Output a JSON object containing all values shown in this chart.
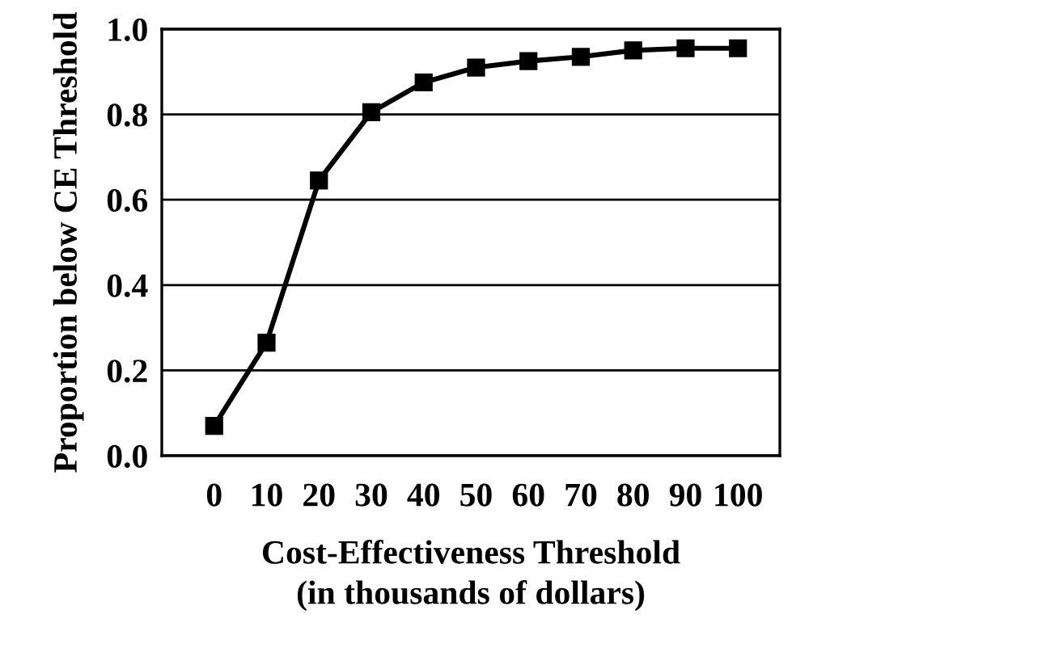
{
  "chart_data": {
    "type": "line",
    "xlabel": "Cost-Effectiveness Threshold\n(in thousands of dollars)",
    "ylabel": "Proportion below CE Threshold",
    "categories": [
      "0",
      "10",
      "20",
      "30",
      "40",
      "50",
      "60",
      "70",
      "80",
      "90",
      "100"
    ],
    "series": [
      {
        "color": "#000000",
        "values": [
          0.07,
          0.265,
          0.645,
          0.805,
          0.875,
          0.91,
          0.925,
          0.935,
          0.95,
          0.955,
          0.955
        ]
      }
    ],
    "ylim": [
      0,
      1
    ],
    "yticks": [
      {
        "value": 0,
        "label": "0.0"
      },
      {
        "value": 0.2,
        "label": "0.2"
      },
      {
        "value": 0.4,
        "label": "0.4"
      },
      {
        "value": 0.6,
        "label": "0.6"
      },
      {
        "value": 0.8,
        "label": "0.8"
      },
      {
        "value": 1,
        "label": "1.0"
      }
    ],
    "grid": "y",
    "marker": "square",
    "line_style": "solid",
    "legend": false
  }
}
